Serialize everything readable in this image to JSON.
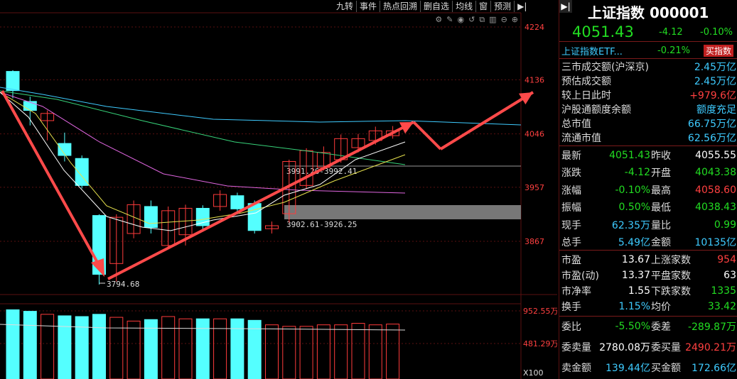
{
  "toolbar": [
    "九转",
    "事件",
    "热点回溯",
    "删自选",
    "均线",
    "窗",
    "预测"
  ],
  "price_axis": {
    "ticks": [
      "4224",
      "4136",
      "4046",
      "3957",
      "3867"
    ]
  },
  "volume_axis": {
    "ticks": [
      "952.55万",
      "481.29万"
    ],
    "unit": "X100"
  },
  "annotations": {
    "low": "3794.68",
    "box1": "3991.26-3992.41",
    "box2": "3902.61-3926.25"
  },
  "header": {
    "title": "上证指数 000001",
    "price": "4051.43",
    "change": "-4.12",
    "pct": "-0.10%"
  },
  "etf": {
    "name": "上证指数ETF...",
    "pct": "-0.21%",
    "buy_label": "买指数"
  },
  "stats1": [
    {
      "label": "三市成交额(沪深京)",
      "value": "2.45万亿",
      "color": "cy"
    },
    {
      "label": "预估成交额",
      "value": "2.45万亿",
      "color": "cy"
    },
    {
      "label": "较上日此时",
      "value": "+979.6亿",
      "color": "red"
    },
    {
      "label": "沪股通额度余额",
      "value": "额度充足",
      "color": "cy"
    },
    {
      "label": "总市值",
      "value": "66.75万亿",
      "color": "cy"
    },
    {
      "label": "流通市值",
      "value": "62.56万亿",
      "color": "cy"
    }
  ],
  "quote_rows": [
    {
      "l1": "最新",
      "v1": "4051.43",
      "c1": "grn",
      "l2": "昨收",
      "v2": "4055.55",
      "c2": "wht"
    },
    {
      "l1": "涨跌",
      "v1": "-4.12",
      "c1": "grn",
      "l2": "开盘",
      "v2": "4043.38",
      "c2": "grn"
    },
    {
      "l1": "涨幅",
      "v1": "-0.10%",
      "c1": "grn",
      "l2": "最高",
      "v2": "4058.60",
      "c2": "red"
    },
    {
      "l1": "振幅",
      "v1": "0.50%",
      "c1": "grn",
      "l2": "最低",
      "v2": "4038.43",
      "c2": "grn"
    },
    {
      "l1": "现手",
      "v1": "62.35万",
      "c1": "cy",
      "l2": "量比",
      "v2": "0.99",
      "c2": "grn"
    },
    {
      "l1": "总手",
      "v1": "5.49亿",
      "c1": "cy",
      "l2": "金额",
      "v2": "10135亿",
      "c2": "cy"
    }
  ],
  "valuation_rows": [
    {
      "l1": "市盈",
      "v1": "13.67",
      "c1": "wht",
      "l2": "上涨家数",
      "v2": "954",
      "c2": "red"
    },
    {
      "l1": "市盈(动)",
      "v1": "13.37",
      "c1": "wht",
      "l2": "平盘家数",
      "v2": "63",
      "c2": "wht"
    },
    {
      "l1": "市净率",
      "v1": "1.55",
      "c1": "wht",
      "l2": "下跌家数",
      "v2": "1335",
      "c2": "grn"
    },
    {
      "l1": "换手",
      "v1": "1.15%",
      "c1": "cy",
      "l2": "均价",
      "v2": "33.42",
      "c2": "grn"
    }
  ],
  "order_rows": [
    {
      "l1": "委比",
      "v1": "-5.50%",
      "c1": "grn",
      "l2": "委差",
      "v2": "-289.87万",
      "c2": "grn"
    },
    {
      "l1": "委卖量",
      "v1": "2780.08万",
      "c1": "wht",
      "l2": "委买量",
      "v2": "2490.21万",
      "c2": "red"
    },
    {
      "l1": "卖金额",
      "v1": "139.44亿",
      "c1": "cy",
      "l2": "买金额",
      "v2": "172.66亿",
      "c2": "cy"
    }
  ],
  "candles": [
    {
      "o": 4150,
      "c": 4118,
      "h": 4152,
      "l": 4105
    },
    {
      "o": 4100,
      "c": 4085,
      "h": 4108,
      "l": 4060
    },
    {
      "o": 4068,
      "c": 4080,
      "h": 4085,
      "l": 4035
    },
    {
      "o": 4030,
      "c": 4010,
      "h": 4048,
      "l": 4000
    },
    {
      "o": 4005,
      "c": 3960,
      "h": 4010,
      "l": 3955
    },
    {
      "o": 3910,
      "c": 3812,
      "h": 3912,
      "l": 3795
    },
    {
      "o": 3830,
      "c": 3907,
      "h": 3912,
      "l": 3800
    },
    {
      "o": 3880,
      "c": 3928,
      "h": 3935,
      "l": 3872
    },
    {
      "o": 3925,
      "c": 3890,
      "h": 3935,
      "l": 3880
    },
    {
      "o": 3860,
      "c": 3918,
      "h": 3925,
      "l": 3855
    },
    {
      "o": 3878,
      "c": 3922,
      "h": 3928,
      "l": 3860
    },
    {
      "o": 3922,
      "c": 3893,
      "h": 3927,
      "l": 3884
    },
    {
      "o": 3925,
      "c": 3945,
      "h": 3952,
      "l": 3918
    },
    {
      "o": 3943,
      "c": 3921,
      "h": 3948,
      "l": 3912
    },
    {
      "o": 3930,
      "c": 3885,
      "h": 3935,
      "l": 3880
    },
    {
      "o": 3888,
      "c": 3893,
      "h": 3900,
      "l": 3880
    },
    {
      "o": 3913,
      "c": 4000,
      "h": 4003,
      "l": 3898
    },
    {
      "o": 3960,
      "c": 4018,
      "h": 4022,
      "l": 3955
    },
    {
      "o": 3990,
      "c": 4015,
      "h": 4025,
      "l": 3985
    },
    {
      "o": 4003,
      "c": 4038,
      "h": 4045,
      "l": 3998
    },
    {
      "o": 4023,
      "c": 4038,
      "h": 4046,
      "l": 4015
    },
    {
      "o": 4035,
      "c": 4051,
      "h": 4058,
      "l": 4028
    },
    {
      "o": 4043,
      "c": 4051,
      "h": 4059,
      "l": 4038
    }
  ],
  "volumes": [
    0.92,
    0.9,
    0.86,
    0.84,
    0.83,
    0.86,
    0.82,
    0.77,
    0.79,
    0.83,
    0.8,
    0.8,
    0.8,
    0.8,
    0.78,
    0.72,
    0.7,
    0.7,
    0.72,
    0.72,
    0.74,
    0.72,
    0.73
  ],
  "colors": {
    "up": "#ff3b3b",
    "down": "#54ffff",
    "arrow": "#ff4a4a",
    "grid": "#5a1010"
  }
}
